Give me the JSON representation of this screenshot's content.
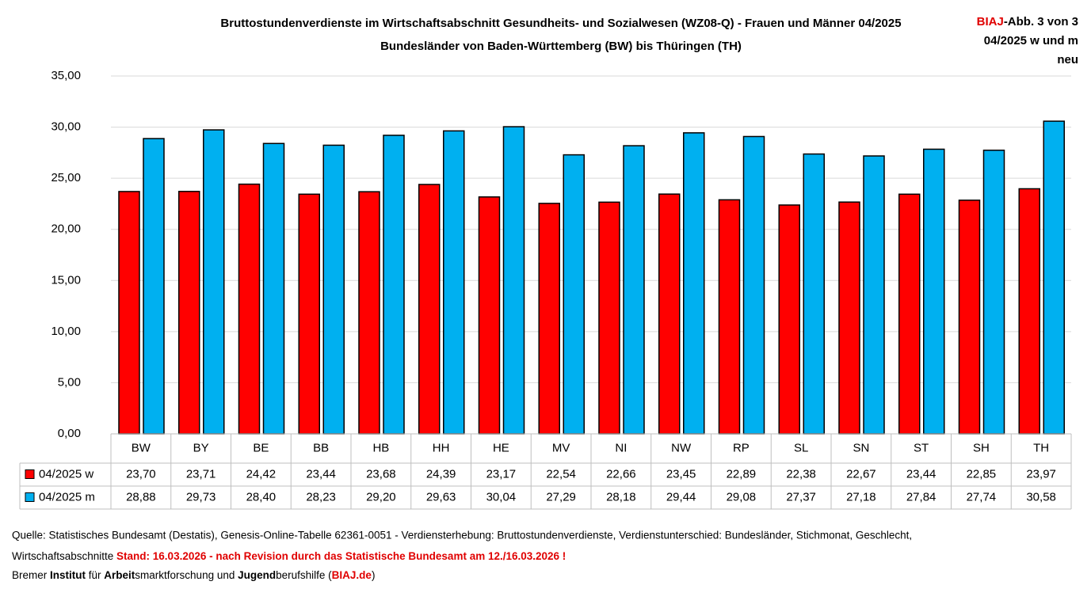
{
  "chart_data": {
    "type": "bar",
    "title": "Bruttostundenverdienste im Wirtschaftsabschnitt Gesundheits- und Sozialwesen (WZ08-Q) - Frauen und Männer 04/2025",
    "subtitle": "Bundesländer von Baden-Württemberg (BW) bis Thüringen (TH)",
    "corner_note": {
      "brand": "BIAJ",
      "figure": "-Abb. 3 von 3",
      "line2": "04/2025 w und m",
      "line3": "neu"
    },
    "categories": [
      "BW",
      "BY",
      "BE",
      "BB",
      "HB",
      "HH",
      "HE",
      "MV",
      "NI",
      "NW",
      "RP",
      "SL",
      "SN",
      "ST",
      "SH",
      "TH"
    ],
    "series": [
      {
        "name": "04/2025 w",
        "color": "#ff0000",
        "values": [
          23.7,
          23.71,
          24.42,
          23.44,
          23.68,
          24.39,
          23.17,
          22.54,
          22.66,
          23.45,
          22.89,
          22.38,
          22.67,
          23.44,
          22.85,
          23.97
        ],
        "value_labels": [
          "23,70",
          "23,71",
          "24,42",
          "23,44",
          "23,68",
          "24,39",
          "23,17",
          "22,54",
          "22,66",
          "23,45",
          "22,89",
          "22,38",
          "22,67",
          "23,44",
          "22,85",
          "23,97"
        ]
      },
      {
        "name": "04/2025 m",
        "color": "#00b0f0",
        "values": [
          28.88,
          29.73,
          28.4,
          28.23,
          29.2,
          29.63,
          30.04,
          27.29,
          28.18,
          29.44,
          29.08,
          27.37,
          27.18,
          27.84,
          27.74,
          30.58
        ],
        "value_labels": [
          "28,88",
          "29,73",
          "28,40",
          "28,23",
          "29,20",
          "29,63",
          "30,04",
          "27,29",
          "28,18",
          "29,44",
          "29,08",
          "27,37",
          "27,18",
          "27,84",
          "27,74",
          "30,58"
        ]
      }
    ],
    "ylim": [
      0,
      35
    ],
    "yticks": [
      {
        "value": 0,
        "label": "0,00"
      },
      {
        "value": 5,
        "label": "5,00"
      },
      {
        "value": 10,
        "label": "10,00"
      },
      {
        "value": 15,
        "label": "15,00"
      },
      {
        "value": 20,
        "label": "20,00"
      },
      {
        "value": 25,
        "label": "25,00"
      },
      {
        "value": 30,
        "label": "30,00"
      },
      {
        "value": 35,
        "label": "35,00"
      }
    ],
    "grid": true
  },
  "footer": {
    "line1": "Quelle: Statistisches Bundesamt (Destatis), Genesis-Online-Tabelle  62361-0051 - Verdiensterhebung: Bruttostundenverdienste, Verdienstunterschied: Bundesländer, Stichmonat, Geschlecht,",
    "line2": [
      "Wirtschaftsabschnitte ",
      "Stand: 16.03.2026 - nach Revision durch das Statistische Bundesamt am 12./16.03.2026 !"
    ],
    "line3": [
      "Bremer ",
      "Institut",
      " für ",
      "Arbeit",
      "smarktforschung und ",
      "Jugend",
      "berufshilfe (",
      "BIAJ.de",
      ")"
    ]
  }
}
